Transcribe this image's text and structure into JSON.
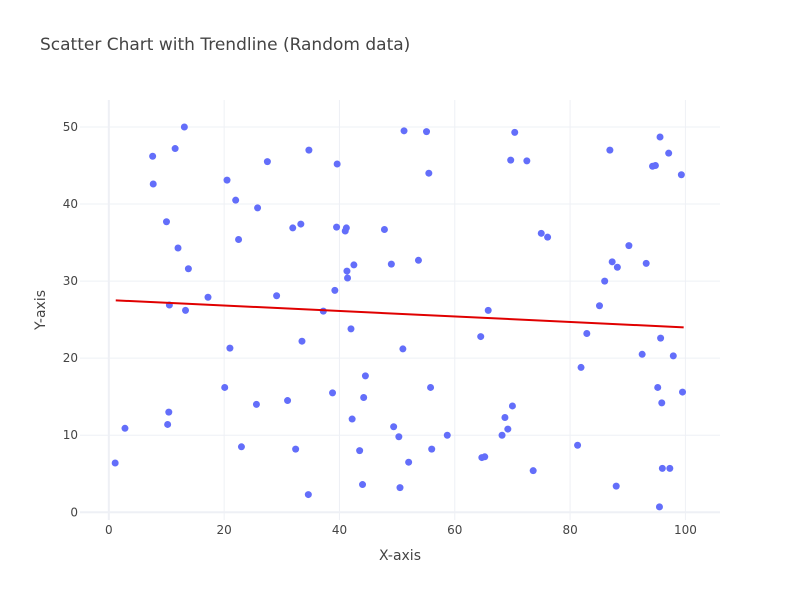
{
  "chart_data": {
    "type": "scatter",
    "title": "Scatter Chart with Trendline (Random data)",
    "xlabel": "X-axis",
    "ylabel": "Y-axis",
    "xlim": [
      -5,
      106
    ],
    "ylim": [
      -1,
      53.5
    ],
    "xticks": [
      0,
      20,
      40,
      60,
      80,
      100
    ],
    "yticks": [
      0,
      10,
      20,
      30,
      40,
      50
    ],
    "grid": true,
    "legend": "none",
    "colors": {
      "points": "#636efa",
      "trendline": "#e00000"
    },
    "trendline": {
      "x": [
        1.2,
        99.7
      ],
      "y": [
        27.5,
        24.0
      ]
    },
    "series": [
      {
        "x": [
          1.1,
          2.8,
          7.6,
          7.7,
          10.0,
          10.2,
          10.4,
          10.5,
          11.5,
          12.0,
          13.1,
          13.3,
          13.8,
          17.2,
          20.1,
          20.5,
          21.0,
          22.0,
          22.5,
          23.0,
          25.6,
          25.8,
          27.5,
          29.1,
          31.0,
          31.9,
          32.4,
          33.3,
          33.5,
          34.6,
          34.7,
          37.2,
          38.8,
          39.2,
          39.5,
          39.6,
          41.0,
          41.2,
          41.3,
          41.4,
          42.0,
          42.2,
          42.5,
          43.5,
          44.0,
          44.2,
          44.5,
          47.8,
          49.0,
          49.4,
          50.3,
          50.5,
          51.0,
          51.2,
          52.0,
          53.7,
          55.1,
          55.5,
          55.8,
          56.0,
          58.7,
          64.5,
          64.7,
          65.2,
          65.8,
          68.2,
          68.7,
          69.2,
          69.7,
          70.0,
          70.4,
          72.5,
          73.6,
          75.0,
          76.1,
          81.3,
          81.9,
          82.9,
          85.1,
          86.0,
          86.9,
          87.3,
          88.0,
          88.2,
          90.2,
          92.5,
          93.2,
          94.3,
          94.8,
          95.2,
          95.5,
          95.6,
          95.7,
          95.9,
          96.0,
          97.1,
          97.3,
          97.9,
          99.3,
          99.5
        ],
        "y": [
          6.4,
          10.9,
          46.2,
          42.6,
          37.7,
          11.4,
          13.0,
          26.9,
          47.2,
          34.3,
          50.0,
          26.2,
          31.6,
          27.9,
          16.2,
          43.1,
          21.3,
          40.5,
          35.4,
          8.5,
          14.0,
          39.5,
          45.5,
          28.1,
          14.5,
          36.9,
          8.2,
          37.4,
          22.2,
          2.3,
          47.0,
          26.1,
          15.5,
          28.8,
          37.0,
          45.2,
          36.5,
          36.9,
          31.3,
          30.4,
          23.8,
          12.1,
          32.1,
          8.0,
          3.6,
          14.9,
          17.7,
          36.7,
          32.2,
          11.1,
          9.8,
          3.2,
          21.2,
          49.5,
          6.5,
          32.7,
          49.4,
          44.0,
          16.2,
          8.2,
          10.0,
          22.8,
          7.1,
          7.2,
          26.2,
          10.0,
          12.3,
          10.8,
          45.7,
          13.8,
          49.3,
          45.6,
          5.4,
          36.2,
          35.7,
          8.7,
          18.8,
          23.2,
          26.8,
          30.0,
          47.0,
          32.5,
          3.4,
          31.8,
          34.6,
          20.5,
          32.3,
          44.9,
          45.0,
          16.2,
          0.7,
          48.7,
          22.6,
          14.2,
          5.7,
          46.6,
          5.7,
          20.3,
          43.8,
          15.6
        ]
      }
    ]
  }
}
